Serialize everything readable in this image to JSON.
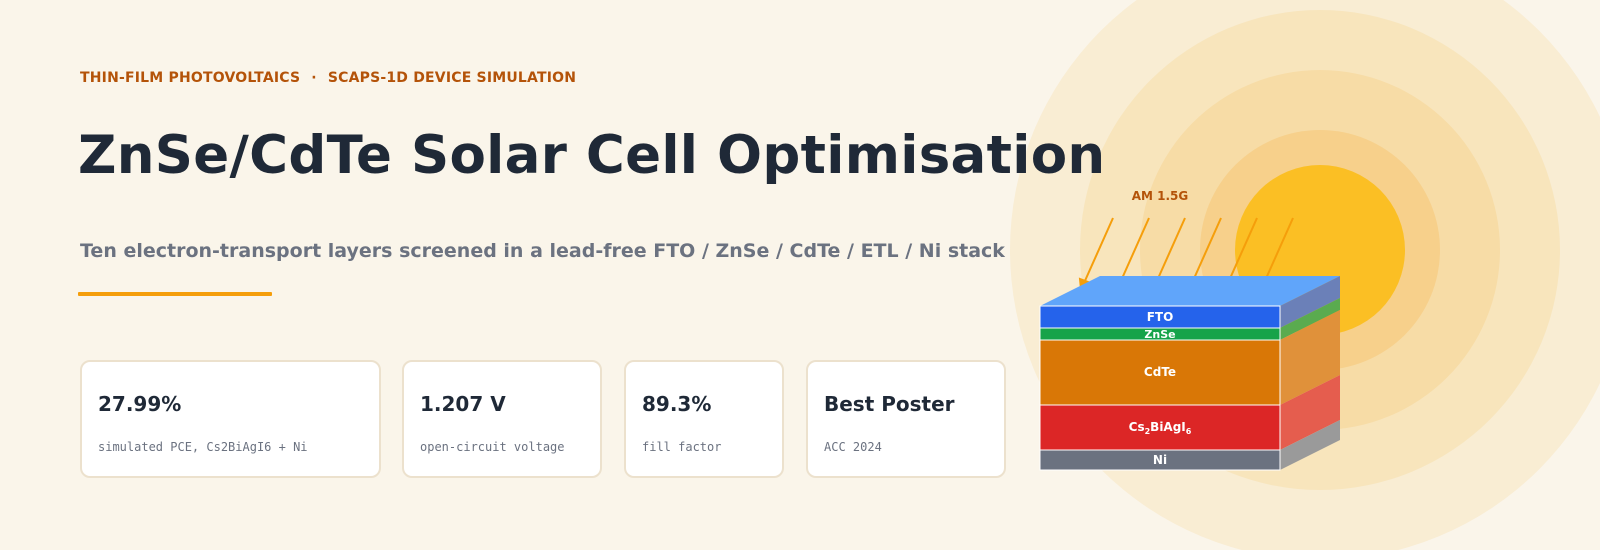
{
  "header": {
    "kicker_left": "THIN-FILM PHOTOVOLTAICS",
    "kicker_sep": "·",
    "kicker_right": "SCAPS-1D DEVICE SIMULATION",
    "title": "ZnSe/CdTe Solar Cell Optimisation",
    "subtitle": "Ten electron-transport layers screened in a lead-free FTO / ZnSe / CdTe / ETL / Ni stack"
  },
  "stats": [
    {
      "value": "27.99%",
      "label": "simulated PCE, Cs2BiAgI6 + Ni"
    },
    {
      "value": "1.207 V",
      "label": "open-circuit voltage"
    },
    {
      "value": "89.3%",
      "label": "fill factor"
    },
    {
      "value": "Best Poster",
      "label": "ACC 2024"
    }
  ],
  "diagram": {
    "illumination_label": "AM 1.5G",
    "etl_label": {
      "base": "Cs",
      "sub1": "2",
      "mid": "BiAgI",
      "sub2": "6"
    },
    "layers": [
      {
        "name": "FTO",
        "label": "FTO",
        "color": "#2563eb"
      },
      {
        "name": "ZnSe",
        "label": "ZnSe",
        "color": "#16a34a"
      },
      {
        "name": "CdTe",
        "label": "CdTe",
        "color": "#d97706"
      },
      {
        "name": "ETL",
        "label": "Cs2BiAgI6",
        "color": "#dc2626"
      },
      {
        "name": "Ni",
        "label": "Ni",
        "color": "#6b7280"
      }
    ],
    "colors": {
      "accent": "#f59e0b",
      "kicker": "#b45309",
      "sun": "#fbbf24",
      "background": "#faf5ea"
    }
  }
}
